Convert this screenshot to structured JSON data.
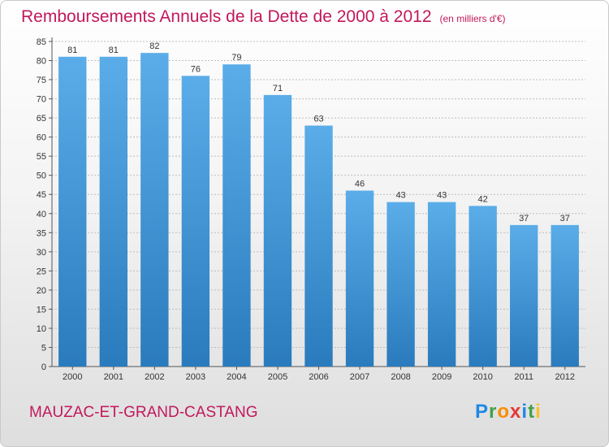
{
  "title": "Remboursements Annuels de la Dette de 2000 à 2012",
  "unit_note": "(en milliers d'€)",
  "commune": "MAUZAC-ET-GRAND-CASTANG",
  "logo": [
    {
      "ch": "P",
      "color": "#1e88e5"
    },
    {
      "ch": "r",
      "color": "#43a047"
    },
    {
      "ch": "o",
      "color": "#fb8c00"
    },
    {
      "ch": "x",
      "color": "#e53935"
    },
    {
      "ch": "i",
      "color": "#1e88e5"
    },
    {
      "ch": "t",
      "color": "#43a047"
    },
    {
      "ch": "i",
      "color": "#fbc02d"
    }
  ],
  "colors": {
    "title": "#c2185b",
    "bar_top": "#5aade8",
    "bar_bottom": "#2a7bbd",
    "grid": "#bdbdbd"
  },
  "chart_data": {
    "type": "bar",
    "categories": [
      "2000",
      "2001",
      "2002",
      "2003",
      "2004",
      "2005",
      "2006",
      "2007",
      "2008",
      "2009",
      "2010",
      "2011",
      "2012"
    ],
    "values": [
      81,
      81,
      82,
      76,
      79,
      71,
      63,
      46,
      43,
      43,
      42,
      37,
      37
    ],
    "ylim": [
      0,
      85
    ],
    "yticks": [
      0,
      5,
      10,
      15,
      20,
      25,
      30,
      35,
      40,
      45,
      50,
      55,
      60,
      65,
      70,
      75,
      80,
      85
    ],
    "grid": true,
    "xlabel": "",
    "ylabel": ""
  }
}
